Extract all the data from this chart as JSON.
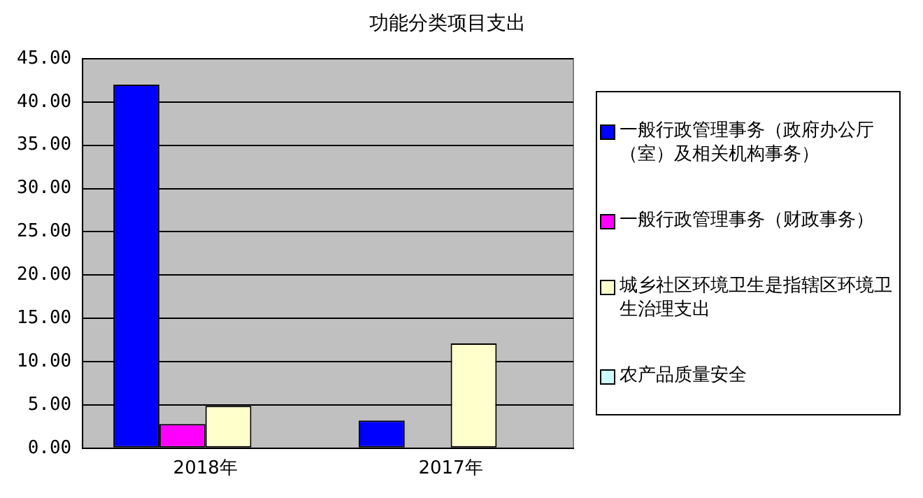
{
  "chart_data": {
    "type": "bar",
    "title": "功能分类项目支出",
    "categories": [
      "2018年",
      "2017年"
    ],
    "series": [
      {
        "name": "一般行政管理事务（政府办公厅（室）及相关机构事务）",
        "color": "#0000ff",
        "values": [
          42.0,
          3.2
        ]
      },
      {
        "name": "一般行政管理事务（财政事务）",
        "color": "#ff00ff",
        "values": [
          2.8,
          0
        ]
      },
      {
        "name": "城乡社区环境卫生是指辖区环境卫生治理支出",
        "color": "#ffffcc",
        "values": [
          4.9,
          12.1
        ]
      },
      {
        "name": "农产品质量安全",
        "color": "#ccffff",
        "values": [
          0,
          0
        ]
      }
    ],
    "ylim": [
      0,
      45
    ],
    "yticks": [
      {
        "value": 0,
        "label": "0.00"
      },
      {
        "value": 5,
        "label": "5.00"
      },
      {
        "value": 10,
        "label": "10.00"
      },
      {
        "value": 15,
        "label": "15.00"
      },
      {
        "value": 20,
        "label": "20.00"
      },
      {
        "value": 25,
        "label": "25.00"
      },
      {
        "value": 30,
        "label": "30.00"
      },
      {
        "value": 35,
        "label": "35.00"
      },
      {
        "value": 40,
        "label": "40.00"
      },
      {
        "value": 45,
        "label": "45.00"
      }
    ],
    "grid": "y",
    "legend": "right"
  }
}
